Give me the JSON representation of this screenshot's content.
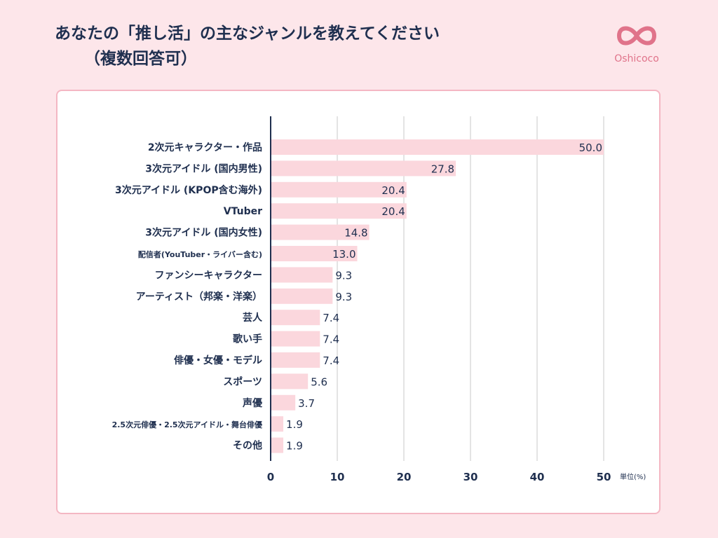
{
  "title": {
    "line1": "あなたの「推し活」の主なジャンルを教えてください",
    "line2": "（複数回答可）"
  },
  "logo": {
    "text": "Oshicoco",
    "icon": "infinity-heart-icon",
    "color": "#e0738a"
  },
  "colors": {
    "bar": "#fbd7dd",
    "axis": "#1f2f4f",
    "grid": "#c9c9c9",
    "text": "#1f2f4f",
    "background": "#fde6ea",
    "card_border": "#f4b7c3"
  },
  "chart_data": {
    "type": "bar",
    "orientation": "horizontal",
    "categories": [
      "2次元キャラクター・作品",
      "3次元アイドル (国内男性)",
      "3次元アイドル (KPOP含む海外)",
      "VTuber",
      "3次元アイドル (国内女性)",
      "配信者(YouTuber・ライバー含む)",
      "ファンシーキャラクター",
      "アーティスト（邦楽・洋楽）",
      "芸人",
      "歌い手",
      "俳優・女優・モデル",
      "スポーツ",
      "声優",
      "2.5次元俳優・2.5次元アイドル・舞台俳優",
      "その他"
    ],
    "values": [
      50.0,
      27.8,
      20.4,
      20.4,
      14.8,
      13.0,
      9.3,
      9.3,
      7.4,
      7.4,
      7.4,
      5.6,
      3.7,
      1.9,
      1.9
    ],
    "value_labels": [
      "50.0",
      "27.8",
      "20.4",
      "20.4",
      "14.8",
      "13.0",
      "9.3",
      "9.3",
      "7.4",
      "7.4",
      "7.4",
      "5.6",
      "3.7",
      "1.9",
      "1.9"
    ],
    "xticks": [
      "0",
      "10",
      "20",
      "30",
      "40",
      "50"
    ],
    "xlim": [
      0,
      50
    ],
    "unit_label": "単位(%)",
    "grid": true
  }
}
